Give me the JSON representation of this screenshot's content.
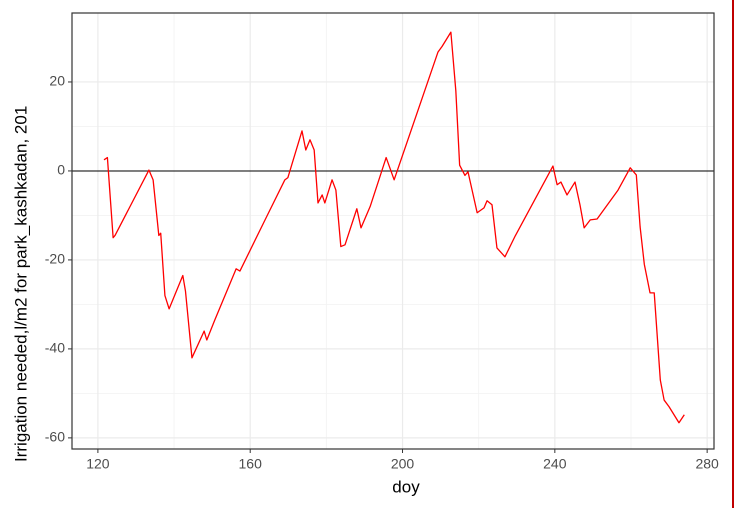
{
  "chart_data": {
    "type": "line",
    "x_label": "doy",
    "y_label": "Irrigation needed,l/m2 for park_kashkadan, 201",
    "xlim": [
      113.2,
      281.8
    ],
    "ylim": [
      -62.5,
      35.5
    ],
    "xticks": [
      120,
      160,
      200,
      240,
      280
    ],
    "yticks": [
      -60,
      -40,
      -20,
      0,
      20
    ],
    "grid": true,
    "hline": 0,
    "series": [
      {
        "color": "#ff0000",
        "x": [
          121.6,
          122.5,
          124,
          124.5,
          133.4,
          134.5,
          136,
          136.5,
          137.6,
          138.7,
          142.3,
          143,
          144.7,
          147.9,
          148.6,
          150.7,
          156.3,
          157.3,
          163.9,
          169.1,
          169.9,
          173.6,
          174.6,
          175.7,
          176.8,
          177.8,
          178.9,
          179.6,
          181.5,
          182.5,
          183.8,
          184.9,
          188,
          189.1,
          191.5,
          195.7,
          197.8,
          209.3,
          210.4,
          212.7,
          214,
          215,
          216.4,
          217.2,
          219.6,
          221.4,
          222.2,
          223.5,
          224.8,
          226.9,
          229.6,
          239.5,
          240.6,
          241.6,
          243.2,
          245.3,
          246.6,
          247.7,
          249.3,
          251.1,
          256.6,
          259.8,
          261.4,
          262.4,
          263.5,
          265,
          266.1,
          267.7,
          268.7,
          270,
          272.6,
          274
        ],
        "values": [
          2.5,
          3,
          -15,
          -14.5,
          0.2,
          -2,
          -14.5,
          -14,
          -28,
          -31,
          -23.5,
          -27,
          -42,
          -36,
          -38,
          -33.5,
          -22,
          -22.5,
          -11,
          -2,
          -1.5,
          9,
          4.7,
          7,
          4.7,
          -7.2,
          -5.4,
          -7.2,
          -2,
          -4.3,
          -17,
          -16.6,
          -8.5,
          -12.8,
          -8,
          3,
          -2,
          26.7,
          28,
          31.2,
          18,
          1.3,
          -1,
          -0.2,
          -9.4,
          -8.3,
          -6.7,
          -7.6,
          -17.3,
          -19.3,
          -14.6,
          1.1,
          -3.1,
          -2.5,
          -5.4,
          -2.5,
          -7.6,
          -12.8,
          -11,
          -10.8,
          -4.3,
          0.7,
          -0.9,
          -12.6,
          -21,
          -27.4,
          -27.4,
          -47,
          -51.5,
          -53,
          -56.6,
          -54.8
        ]
      }
    ]
  }
}
